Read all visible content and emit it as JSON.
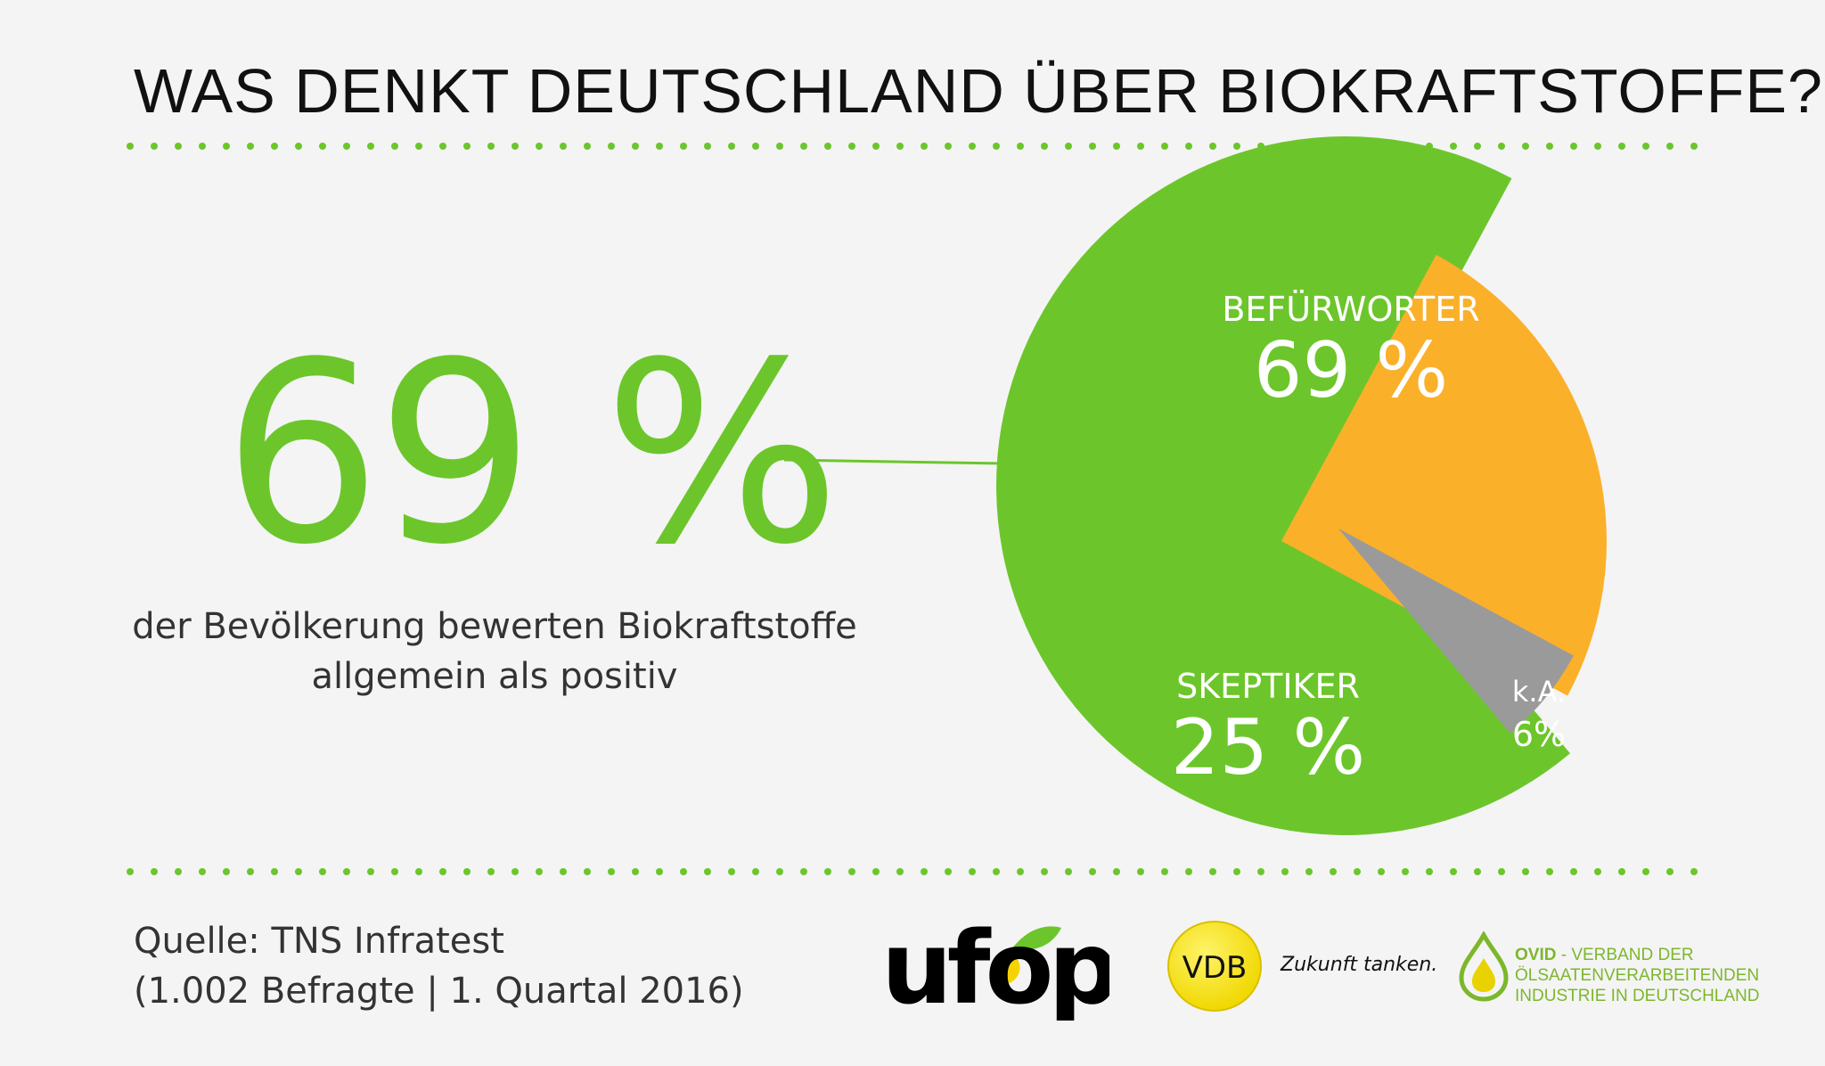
{
  "title": "WAS DENKT DEUTSCHLAND ÜBER BIOKRAFTSTOFFE?",
  "headline_value": "69 %",
  "subtext_line1": "der Bevölkerung bewerten Biokraftstoffe",
  "subtext_line2": "allgemein als positiv",
  "source_line1": "Quelle: TNS Infratest",
  "source_line2": "(1.002 Befragte | 1. Quartal 2016)",
  "logos": {
    "ufop": "ufop",
    "vdb": "VDB",
    "vdb_tagline": "Zukunft tanken.",
    "ovid_name": "OVID",
    "ovid_line1_rest": " - VERBAND DER",
    "ovid_line2": "ÖLSAATENVERARBEITENDEN",
    "ovid_line3": "INDUSTRIE IN DEUTSCHLAND"
  },
  "colors": {
    "green": "#6cc62b",
    "orange": "#fbb02a",
    "gray": "#9a9a9a",
    "background": "#f4f4f4"
  },
  "chart_data": {
    "type": "pie",
    "slices": [
      {
        "name": "BEFÜRWORTER",
        "value": 69,
        "label": "69 %",
        "color": "#6cc62b"
      },
      {
        "name": "SKEPTIKER",
        "value": 25,
        "label": "25 %",
        "color": "#fbb02a"
      },
      {
        "name": "k.A.",
        "value": 6,
        "label": "6%",
        "color": "#9a9a9a"
      }
    ]
  }
}
